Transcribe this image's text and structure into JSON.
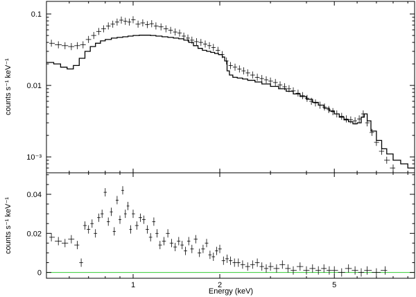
{
  "chart_data": [
    {
      "type": "scatter",
      "panel": "spectrum",
      "title": "",
      "xlabel": "",
      "ylabel": "counts s⁻¹ keV⁻¹",
      "xscale": "log",
      "yscale": "log",
      "xlim": [
        0.5,
        9.5
      ],
      "ylim": [
        0.0006,
        0.15
      ],
      "yticks": [
        {
          "value": 0.1,
          "label": "0.1"
        },
        {
          "value": 0.01,
          "label": "0.01"
        },
        {
          "value": 0.001,
          "label": "10⁻³"
        }
      ],
      "series": [
        {
          "kind": "data-crosses",
          "x": [
            0.52,
            0.55,
            0.58,
            0.61,
            0.64,
            0.67,
            0.7,
            0.73,
            0.76,
            0.79,
            0.82,
            0.85,
            0.88,
            0.91,
            0.94,
            0.97,
            1.0,
            1.04,
            1.08,
            1.12,
            1.16,
            1.2,
            1.25,
            1.3,
            1.35,
            1.4,
            1.45,
            1.5,
            1.55,
            1.6,
            1.66,
            1.72,
            1.78,
            1.84,
            1.9,
            1.97,
            2.04,
            2.11,
            2.18,
            2.26,
            2.34,
            2.42,
            2.5,
            2.6,
            2.7,
            2.8,
            2.9,
            3.0,
            3.12,
            3.24,
            3.36,
            3.48,
            3.6,
            3.74,
            3.88,
            4.02,
            4.16,
            4.3,
            4.46,
            4.62,
            4.78,
            4.94,
            5.1,
            5.3,
            5.5,
            5.7,
            5.9,
            6.1,
            6.3,
            6.5,
            6.75,
            7.0,
            7.3,
            7.6,
            8.0
          ],
          "y": [
            0.039,
            0.037,
            0.036,
            0.035,
            0.036,
            0.037,
            0.044,
            0.05,
            0.057,
            0.062,
            0.068,
            0.072,
            0.077,
            0.082,
            0.079,
            0.077,
            0.083,
            0.072,
            0.075,
            0.071,
            0.073,
            0.068,
            0.066,
            0.062,
            0.059,
            0.056,
            0.054,
            0.049,
            0.046,
            0.043,
            0.041,
            0.04,
            0.038,
            0.036,
            0.034,
            0.031,
            0.027,
            0.022,
            0.019,
            0.018,
            0.017,
            0.016,
            0.015,
            0.014,
            0.013,
            0.0125,
            0.012,
            0.0115,
            0.011,
            0.0102,
            0.0096,
            0.009,
            0.0084,
            0.0078,
            0.0072,
            0.0066,
            0.006,
            0.0057,
            0.0053,
            0.005,
            0.0046,
            0.0043,
            0.004,
            0.0037,
            0.0034,
            0.0033,
            0.0032,
            0.0034,
            0.004,
            0.003,
            0.0022,
            0.0016,
            0.0012,
            0.0009,
            0.0007
          ]
        },
        {
          "kind": "model-step",
          "x": [
            0.5,
            0.53,
            0.56,
            0.59,
            0.62,
            0.65,
            0.68,
            0.71,
            0.74,
            0.77,
            0.8,
            0.84,
            0.88,
            0.92,
            0.96,
            1.0,
            1.05,
            1.1,
            1.15,
            1.2,
            1.26,
            1.32,
            1.38,
            1.44,
            1.5,
            1.56,
            1.62,
            1.68,
            1.74,
            1.8,
            1.86,
            1.92,
            1.98,
            2.04,
            2.08,
            2.12,
            2.16,
            2.22,
            2.3,
            2.4,
            2.5,
            2.65,
            2.8,
            3.0,
            3.2,
            3.4,
            3.6,
            3.8,
            4.0,
            4.2,
            4.4,
            4.6,
            4.8,
            5.0,
            5.2,
            5.4,
            5.6,
            5.8,
            6.0,
            6.2,
            6.35,
            6.5,
            6.7,
            7.0,
            7.3,
            7.6,
            8.0,
            8.5,
            9.0,
            9.5
          ],
          "y": [
            0.021,
            0.02,
            0.018,
            0.017,
            0.019,
            0.024,
            0.03,
            0.035,
            0.039,
            0.042,
            0.044,
            0.046,
            0.047,
            0.048,
            0.049,
            0.05,
            0.0505,
            0.0505,
            0.05,
            0.049,
            0.048,
            0.047,
            0.046,
            0.045,
            0.043,
            0.04,
            0.036,
            0.033,
            0.031,
            0.03,
            0.029,
            0.028,
            0.027,
            0.025,
            0.022,
            0.016,
            0.014,
            0.013,
            0.0127,
            0.0123,
            0.0118,
            0.0112,
            0.0105,
            0.0097,
            0.009,
            0.0083,
            0.0076,
            0.007,
            0.0064,
            0.0058,
            0.0053,
            0.0048,
            0.0044,
            0.004,
            0.0036,
            0.0033,
            0.0031,
            0.0029,
            0.003,
            0.0036,
            0.004,
            0.0032,
            0.0023,
            0.0017,
            0.0013,
            0.0011,
            0.0009,
            0.0008,
            0.0007,
            0.0007
          ]
        }
      ]
    },
    {
      "type": "scatter",
      "panel": "residuals",
      "title": "",
      "xlabel": "Energy (keV)",
      "ylabel": "counts s⁻¹ keV⁻¹",
      "xscale": "log",
      "yscale": "linear",
      "xlim": [
        0.5,
        9.5
      ],
      "ylim": [
        -0.003,
        0.051
      ],
      "xticks": [
        {
          "value": 1,
          "label": "1"
        },
        {
          "value": 2,
          "label": "2"
        },
        {
          "value": 5,
          "label": "5"
        }
      ],
      "yticks": [
        {
          "value": 0,
          "label": "0"
        },
        {
          "value": 0.02,
          "label": "0.02"
        },
        {
          "value": 0.04,
          "label": "0.04"
        }
      ],
      "zero_line_color": "#33cc33",
      "series": [
        {
          "kind": "residual-crosses",
          "x": [
            0.52,
            0.55,
            0.58,
            0.61,
            0.64,
            0.66,
            0.68,
            0.7,
            0.72,
            0.74,
            0.76,
            0.78,
            0.8,
            0.82,
            0.84,
            0.86,
            0.88,
            0.9,
            0.92,
            0.94,
            0.96,
            0.98,
            1.0,
            1.03,
            1.06,
            1.09,
            1.12,
            1.15,
            1.18,
            1.21,
            1.24,
            1.28,
            1.32,
            1.36,
            1.4,
            1.44,
            1.48,
            1.52,
            1.56,
            1.6,
            1.65,
            1.7,
            1.75,
            1.8,
            1.85,
            1.9,
            1.95,
            2.0,
            2.06,
            2.12,
            2.18,
            2.25,
            2.32,
            2.4,
            2.5,
            2.6,
            2.7,
            2.8,
            2.9,
            3.0,
            3.15,
            3.3,
            3.45,
            3.6,
            3.8,
            4.0,
            4.2,
            4.4,
            4.6,
            4.8,
            5.0,
            5.3,
            5.6,
            5.9,
            6.2,
            6.5,
            7.0,
            7.5
          ],
          "y": [
            0.018,
            0.016,
            0.015,
            0.017,
            0.014,
            0.005,
            0.024,
            0.022,
            0.025,
            0.02,
            0.028,
            0.03,
            0.041,
            0.026,
            0.031,
            0.021,
            0.037,
            0.027,
            0.042,
            0.03,
            0.034,
            0.022,
            0.03,
            0.024,
            0.028,
            0.027,
            0.022,
            0.018,
            0.026,
            0.02,
            0.014,
            0.016,
            0.02,
            0.015,
            0.013,
            0.016,
            0.014,
            0.011,
            0.016,
            0.012,
            0.017,
            0.01,
            0.012,
            0.015,
            0.009,
            0.008,
            0.011,
            0.012,
            0.006,
            0.007,
            0.006,
            0.005,
            0.005,
            0.004,
            0.003,
            0.004,
            0.005,
            0.003,
            0.002,
            0.003,
            0.002,
            0.004,
            0.002,
            0.001,
            0.003,
            0.001,
            0.002,
            0.001,
            0.002,
            0.001,
            0.001,
            0.0,
            0.002,
            0.001,
            0.0,
            0.001,
            0.0,
            0.001
          ]
        }
      ]
    }
  ]
}
